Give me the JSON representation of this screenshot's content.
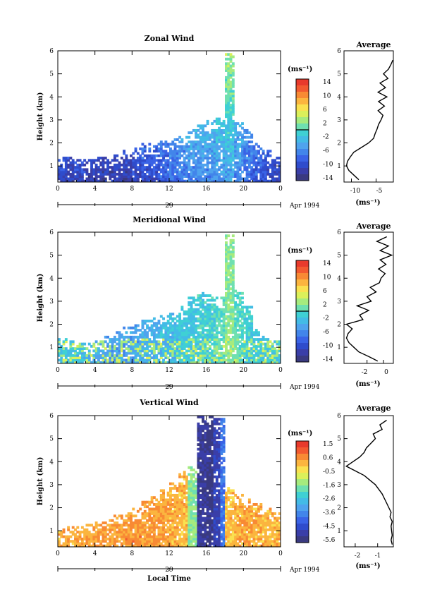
{
  "panels": [
    {
      "title": "Zonal Wind",
      "ylabel": "Height (km)",
      "xticks": [
        "0",
        "4",
        "8",
        "12",
        "16",
        "20",
        "0"
      ],
      "yticks": [
        "1",
        "2",
        "3",
        "4",
        "5",
        "6"
      ],
      "date_label": "29",
      "month_label": "Apr 1994",
      "unit": "(ms⁻¹)",
      "colorbar_ticks": [
        "14",
        "10",
        "6",
        "2",
        "-2",
        "-6",
        "-10",
        "-14"
      ],
      "avg_title": "Average",
      "avg_xticks": [
        "-10",
        "-5"
      ],
      "avg_xlabel": "(ms⁻¹)",
      "avg_xlim": [
        -11.5,
        -1.5
      ],
      "avg_profile": {
        "height": [
          0.4,
          0.6,
          0.8,
          1.0,
          1.2,
          1.4,
          1.6,
          1.8,
          2.0,
          2.2,
          2.4,
          2.6,
          2.8,
          3.0,
          3.2,
          3.4,
          3.6,
          3.8,
          4.0,
          4.2,
          4.4,
          4.6,
          4.8,
          5.0,
          5.2,
          5.4,
          5.6
        ],
        "value": [
          -8.5,
          -9.5,
          -10.5,
          -11.0,
          -10.8,
          -10.2,
          -9.5,
          -8.0,
          -6.5,
          -5.5,
          -5.2,
          -4.8,
          -4.5,
          -4.0,
          -3.6,
          -4.6,
          -3.3,
          -4.5,
          -2.8,
          -4.6,
          -3.1,
          -4.2,
          -2.6,
          -3.5,
          -2.5,
          -2.0,
          -1.6
        ]
      }
    },
    {
      "title": "Meridional Wind",
      "ylabel": "Height (km)",
      "xticks": [
        "0",
        "4",
        "8",
        "12",
        "16",
        "20",
        "0"
      ],
      "yticks": [
        "1",
        "2",
        "3",
        "4",
        "5",
        "6"
      ],
      "date_label": "29",
      "month_label": "Apr 1994",
      "unit": "(ms⁻¹)",
      "colorbar_ticks": [
        "14",
        "10",
        "6",
        "2",
        "-2",
        "-6",
        "-10",
        "-14"
      ],
      "avg_title": "Average",
      "avg_xticks": [
        "-2",
        "0"
      ],
      "avg_xlabel": "(ms⁻¹)",
      "avg_xlim": [
        -4.8,
        1.2
      ],
      "avg_profile": {
        "height": [
          0.4,
          0.6,
          0.8,
          1.0,
          1.2,
          1.4,
          1.6,
          1.8,
          2.0,
          2.2,
          2.4,
          2.6,
          2.8,
          3.0,
          3.2,
          3.4,
          3.6,
          3.8,
          4.0,
          4.2,
          4.4,
          4.6,
          4.8,
          5.0,
          5.2,
          5.4,
          5.6,
          5.8
        ],
        "value": [
          -0.7,
          -1.8,
          -3.0,
          -3.6,
          -4.2,
          -4.5,
          -4.3,
          -3.8,
          -4.5,
          -2.5,
          -2.9,
          -1.8,
          -3.2,
          -1.5,
          -2.0,
          -0.9,
          -1.6,
          -0.5,
          -0.3,
          0.2,
          -0.6,
          0.3,
          -0.4,
          1.0,
          -0.4,
          0.6,
          -0.8,
          0.4
        ]
      }
    },
    {
      "title": "Vertical Wind",
      "ylabel": "Height (km)",
      "xticks": [
        "0",
        "4",
        "8",
        "12",
        "16",
        "20",
        "0"
      ],
      "yticks": [
        "1",
        "2",
        "3",
        "4",
        "5",
        "6"
      ],
      "date_label": "29",
      "month_label": "Apr 1994",
      "unit": "(ms⁻¹)",
      "colorbar_ticks": [
        "1.5",
        "0.6",
        "-0.5",
        "-1.6",
        "-2.6",
        "-3.6",
        "-4.5",
        "-5.6"
      ],
      "avg_title": "Average",
      "avg_xticks": [
        "-2",
        "-1"
      ],
      "avg_xlabel": "(ms⁻¹)",
      "avg_xlim": [
        -2.5,
        -0.3
      ],
      "avg_profile": {
        "height": [
          0.4,
          0.6,
          0.8,
          1.0,
          1.2,
          1.4,
          1.6,
          1.8,
          2.0,
          2.2,
          2.4,
          2.6,
          2.8,
          3.0,
          3.2,
          3.4,
          3.6,
          3.8,
          4.0,
          4.2,
          4.4,
          4.6,
          4.8,
          5.0,
          5.2,
          5.4,
          5.6,
          5.8
        ],
        "value": [
          -0.35,
          -0.4,
          -0.35,
          -0.38,
          -0.4,
          -0.35,
          -0.45,
          -0.4,
          -0.5,
          -0.6,
          -0.7,
          -0.8,
          -0.95,
          -1.1,
          -1.35,
          -1.6,
          -2.0,
          -2.4,
          -2.1,
          -1.8,
          -1.6,
          -1.5,
          -1.3,
          -1.1,
          -1.2,
          -0.8,
          -0.9,
          -0.6
        ]
      }
    }
  ],
  "xlabel_bottom": "Local Time",
  "chart_data": [
    {
      "type": "heatmap",
      "title": "Zonal Wind",
      "xlabel": "Local Time (29 Apr 1994)",
      "ylabel": "Height (km)",
      "xlim": [
        0,
        24
      ],
      "ylim": [
        0.3,
        6
      ],
      "colorbar_label": "(ms⁻¹)",
      "colorbar_range": [
        -16,
        16
      ],
      "color_levels": [
        -16,
        -14,
        -12,
        -10,
        -8,
        -6,
        -4,
        -2,
        0,
        2,
        4,
        6,
        8,
        10,
        12,
        14,
        16
      ],
      "coverage_top_km": [
        1.4,
        1.4,
        1.3,
        1.3,
        1.4,
        1.4,
        1.5,
        1.7,
        1.8,
        2.0,
        2.0,
        2.1,
        2.2,
        2.3,
        2.6,
        2.8,
        3.0,
        3.1,
        5.8,
        2.9,
        2.6,
        2.0,
        1.7,
        1.4
      ],
      "typical_value_ms": [
        -11,
        -11,
        -11,
        -12,
        -12,
        -12,
        -12,
        -12,
        -11,
        -10,
        -10,
        -9,
        -8,
        -7,
        -6,
        -6,
        -6,
        -5,
        -4,
        -6,
        -8,
        -9,
        -10,
        -11
      ],
      "contour_level": 0
    },
    {
      "type": "heatmap",
      "title": "Meridional Wind",
      "xlabel": "Local Time (29 Apr 1994)",
      "ylabel": "Height (km)",
      "xlim": [
        0,
        24
      ],
      "ylim": [
        0.3,
        6
      ],
      "colorbar_label": "(ms⁻¹)",
      "colorbar_range": [
        -16,
        16
      ],
      "color_levels": [
        -16,
        -14,
        -12,
        -10,
        -8,
        -6,
        -4,
        -2,
        0,
        2,
        4,
        6,
        8,
        10,
        12,
        14,
        16
      ],
      "coverage_top_km": [
        1.4,
        1.3,
        1.2,
        1.1,
        1.3,
        1.5,
        1.7,
        1.9,
        2.0,
        2.2,
        2.3,
        2.4,
        2.5,
        2.8,
        3.2,
        3.4,
        3.3,
        3.2,
        5.8,
        3.5,
        2.8,
        1.8,
        1.5,
        1.3
      ],
      "typical_value_ms": [
        -2,
        -2,
        -3,
        -4,
        -4,
        -5,
        -5,
        -5,
        -5,
        -4,
        -4,
        -3,
        -3,
        -2,
        -2,
        -1,
        -1,
        0,
        2,
        0,
        -1,
        -2,
        -2,
        -2
      ],
      "contour_level": 0
    },
    {
      "type": "heatmap",
      "title": "Vertical Wind",
      "xlabel": "Local Time (29 Apr 1994)",
      "ylabel": "Height (km)",
      "xlim": [
        0,
        24
      ],
      "ylim": [
        0.3,
        6
      ],
      "colorbar_label": "(ms⁻¹)",
      "colorbar_range": [
        -6.1,
        2.0
      ],
      "color_levels": [
        -6.1,
        -5.6,
        -5.1,
        -4.5,
        -4.0,
        -3.6,
        -3.1,
        -2.6,
        -2.1,
        -1.6,
        -1.1,
        -0.5,
        0.0,
        0.6,
        1.0,
        1.5,
        2.0
      ],
      "coverage_top_km": [
        1.0,
        1.1,
        1.2,
        1.3,
        1.4,
        1.5,
        1.7,
        1.8,
        2.0,
        2.3,
        2.5,
        2.8,
        3.1,
        3.6,
        3.8,
        6.0,
        6.0,
        5.8,
        2.9,
        2.6,
        2.4,
        2.2,
        2.0,
        1.8
      ],
      "typical_value_ms": [
        0.3,
        0.3,
        0.4,
        0.4,
        0.5,
        0.5,
        0.5,
        0.6,
        0.6,
        0.5,
        0.5,
        0.4,
        0.3,
        0.2,
        -1.5,
        -5.5,
        -5.8,
        -4.0,
        0.2,
        0.3,
        0.3,
        0.3,
        0.2,
        0.2
      ],
      "downdraft_times_h": [
        15.5,
        17.5
      ]
    },
    {
      "type": "line",
      "title": "Average",
      "xlabel": "(ms⁻¹)",
      "ylabel": "Height (km)",
      "series": [
        {
          "x_key": "panels.0.avg_profile.value",
          "y_key": "panels.0.avg_profile.height"
        }
      ],
      "xlim": [
        -11.5,
        -1.5
      ],
      "ylim": [
        0.3,
        6
      ]
    },
    {
      "type": "line",
      "title": "Average",
      "xlabel": "(ms⁻¹)",
      "ylabel": "Height (km)",
      "series": [
        {
          "x_key": "panels.1.avg_profile.value",
          "y_key": "panels.1.avg_profile.height"
        }
      ],
      "xlim": [
        -4.8,
        1.2
      ],
      "ylim": [
        0.3,
        6
      ]
    },
    {
      "type": "line",
      "title": "Average",
      "xlabel": "(ms⁻¹)",
      "ylabel": "Height (km)",
      "series": [
        {
          "x_key": "panels.2.avg_profile.value",
          "y_key": "panels.2.avg_profile.height"
        }
      ],
      "xlim": [
        -2.5,
        -0.3
      ],
      "ylim": [
        0.3,
        6
      ]
    }
  ]
}
